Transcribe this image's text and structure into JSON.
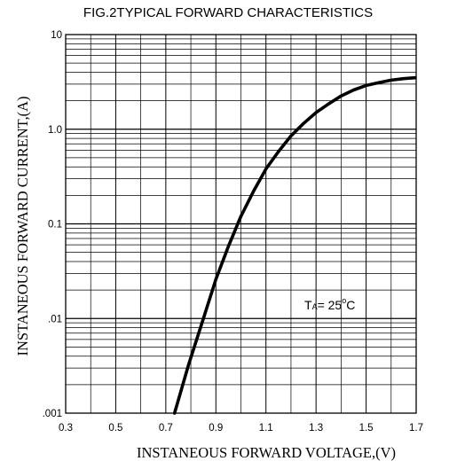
{
  "chart_data": {
    "type": "line",
    "title": "FIG.2TYPICAL FORWARD CHARACTERISTICS",
    "xlabel": "INSTANEOUS FORWARD VOLTAGE,(V)",
    "ylabel": "INSTANEOUS FORWARD CURRENT,(A)",
    "x_scale": "linear",
    "y_scale": "log",
    "xlim": [
      0.3,
      1.7
    ],
    "ylim": [
      0.001,
      10
    ],
    "x_ticks": [
      "0.3",
      "0.5",
      "0.7",
      "0.9",
      "1.1",
      "1.3",
      "1.5",
      "1.7"
    ],
    "y_ticks": [
      {
        "value": 10,
        "label": "10"
      },
      {
        "value": 1,
        "label": "1.0"
      },
      {
        "value": 0.1,
        "label": "0.1"
      },
      {
        "value": 0.01,
        "label": ".01"
      },
      {
        "value": 0.001,
        "label": ".001"
      }
    ],
    "grid": true,
    "series": [
      {
        "x": [
          0.735,
          0.79,
          0.85,
          0.9,
          0.95,
          1.0,
          1.05,
          1.1,
          1.15,
          1.2,
          1.25,
          1.3,
          1.35,
          1.4,
          1.45,
          1.5,
          1.55,
          1.6,
          1.65,
          1.695
        ],
        "y": [
          0.001,
          0.0032,
          0.01,
          0.026,
          0.058,
          0.12,
          0.22,
          0.38,
          0.58,
          0.85,
          1.15,
          1.5,
          1.85,
          2.25,
          2.6,
          2.9,
          3.1,
          3.3,
          3.42,
          3.5
        ]
      }
    ],
    "annotation": {
      "main": "T",
      "sub": "A",
      "rest": "= 25",
      "degree": "o",
      "unit": "C"
    },
    "colors": {
      "line": "#000000",
      "grid": "#000000",
      "background": "#ffffff"
    }
  }
}
